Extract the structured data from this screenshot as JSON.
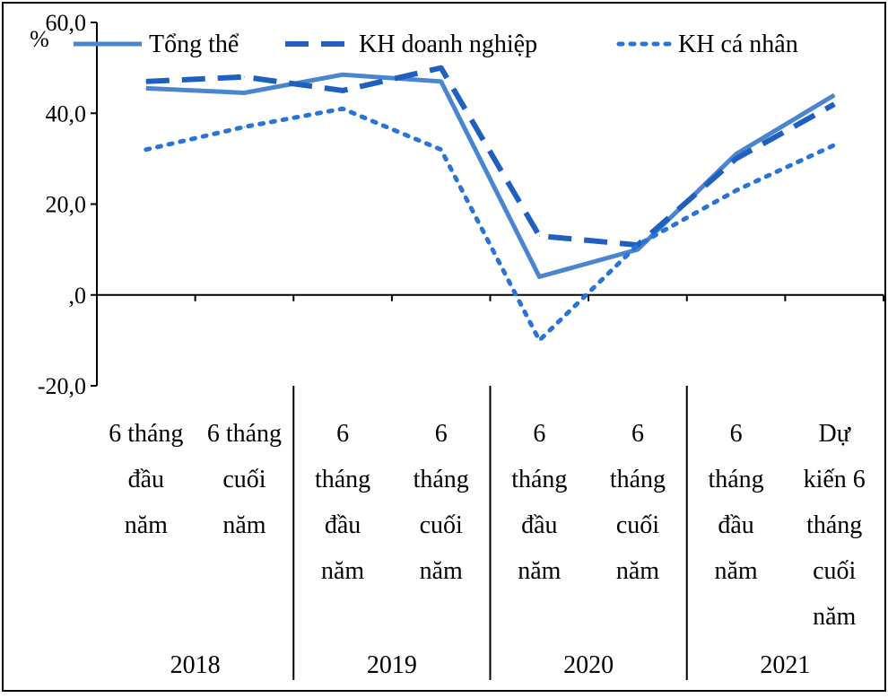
{
  "chart_data": {
    "type": "line",
    "ylabel": "%",
    "ylim": [
      -20,
      60
    ],
    "yticks": [
      {
        "value": 60,
        "label": "60,0"
      },
      {
        "value": 40,
        "label": "40,0"
      },
      {
        "value": 20,
        "label": "20,0"
      },
      {
        "value": 0,
        "label": ",0"
      },
      {
        "value": -20,
        "label": "-20,0"
      }
    ],
    "categories": [
      [
        "6 tháng",
        "đầu",
        "năm"
      ],
      [
        "6 tháng",
        "cuối",
        "năm"
      ],
      [
        "6",
        "tháng",
        "đầu",
        "năm"
      ],
      [
        "6",
        "tháng",
        "cuối",
        "năm"
      ],
      [
        "6",
        "tháng",
        "đầu",
        "năm"
      ],
      [
        "6",
        "tháng",
        "cuối",
        "năm"
      ],
      [
        "6",
        "tháng",
        "đầu",
        "năm"
      ],
      [
        "Dự",
        "kiến 6",
        "tháng",
        "cuối",
        "năm"
      ]
    ],
    "years": [
      "2018",
      "2019",
      "2020",
      "2021"
    ],
    "series": [
      {
        "name": "Tổng thể",
        "style": "solid",
        "color": "#4a86cf",
        "values": [
          45.5,
          44.5,
          48.5,
          47,
          4,
          10,
          31,
          44
        ]
      },
      {
        "name": "KH doanh nghiệp",
        "style": "dashed",
        "color": "#1f5fbf",
        "values": [
          47,
          48,
          45,
          50,
          13,
          11,
          30,
          42
        ]
      },
      {
        "name": "KH cá nhân",
        "style": "dotted",
        "color": "#2a74d6",
        "values": [
          32,
          37,
          41,
          32,
          -10,
          11,
          23,
          33
        ]
      }
    ],
    "legend_position": "top",
    "grid": false
  }
}
